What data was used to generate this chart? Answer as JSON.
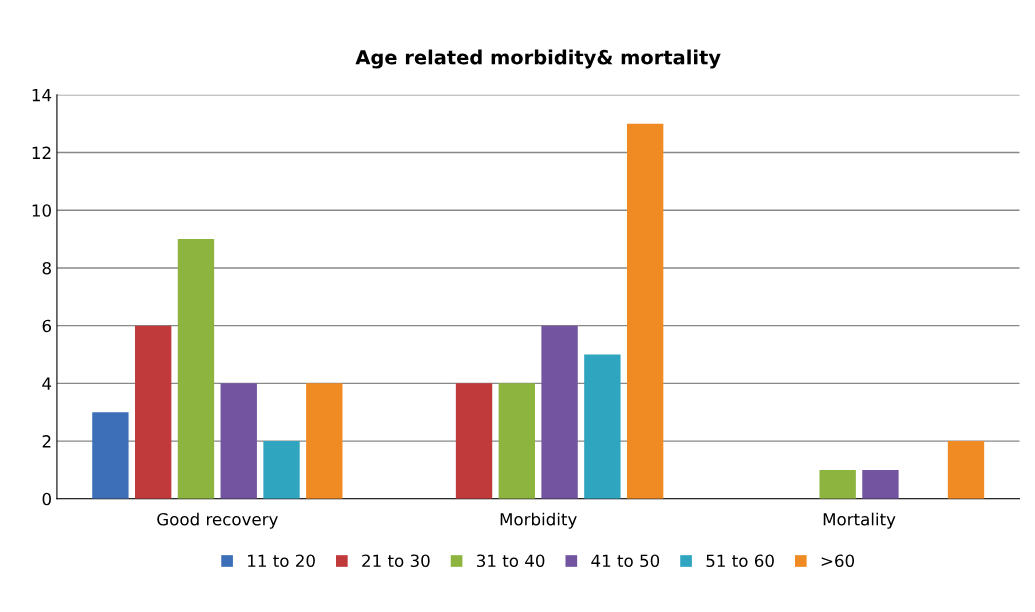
{
  "chart_data": {
    "type": "bar",
    "title": "Age related morbidity& mortality",
    "categories": [
      "Good recovery",
      "Morbidity",
      "Mortality"
    ],
    "series": [
      {
        "name": "11 to 20",
        "color": "#3c6fb8",
        "values": [
          3,
          0,
          0
        ]
      },
      {
        "name": "21 to 30",
        "color": "#c0393b",
        "values": [
          6,
          4,
          0
        ]
      },
      {
        "name": "31 to 40",
        "color": "#8db43e",
        "values": [
          9,
          4,
          1
        ]
      },
      {
        "name": "41 to 50",
        "color": "#7254a0",
        "values": [
          4,
          6,
          1
        ]
      },
      {
        "name": "51 to 60",
        "color": "#2fa5c0",
        "values": [
          2,
          5,
          0
        ]
      },
      {
        "name": ">60",
        "color": "#f08a22",
        "values": [
          4,
          13,
          2
        ]
      }
    ],
    "ylim": [
      0,
      14
    ],
    "yticks": [
      0,
      2,
      4,
      6,
      8,
      10,
      12,
      14
    ],
    "grid": "y",
    "legend": "bottom"
  }
}
